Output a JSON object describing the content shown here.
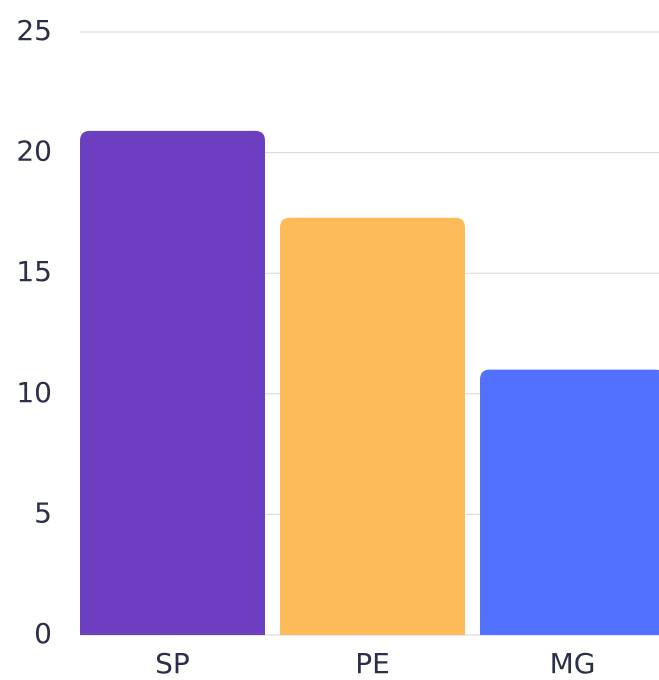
{
  "chart_data": {
    "type": "bar",
    "categories": [
      "SP",
      "PE",
      "MG"
    ],
    "values": [
      20.9,
      17.3,
      11.0
    ],
    "colors": [
      "#6c3fc1",
      "#fdbb5a",
      "#5271ff"
    ],
    "ylim": [
      0,
      25
    ],
    "yticks": [
      0,
      5,
      10,
      15,
      20,
      25
    ],
    "grid": true
  }
}
